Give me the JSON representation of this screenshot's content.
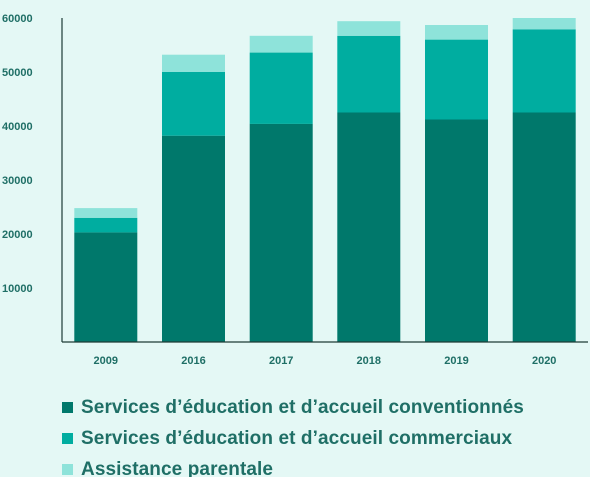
{
  "chart_data": {
    "type": "bar",
    "stacked": true,
    "categories": [
      "2009",
      "2016",
      "2017",
      "2018",
      "2019",
      "2020"
    ],
    "series": [
      {
        "name": "Services d’éducation et d’accueil conventionnés",
        "color": "#00786b",
        "values": [
          20300,
          38200,
          40400,
          42500,
          41200,
          42500
        ]
      },
      {
        "name": "Services d’éducation et d’accueil commerciaux",
        "color": "#00ada0",
        "values": [
          2700,
          11800,
          13200,
          14200,
          14800,
          15400
        ]
      },
      {
        "name": "Assistance parentale",
        "color": "#8ee3da",
        "values": [
          1800,
          3200,
          3100,
          2700,
          2700,
          2100
        ]
      }
    ],
    "ylim": [
      0,
      60000
    ],
    "yticks": [
      10000,
      20000,
      30000,
      40000,
      50000,
      60000
    ],
    "grid": false,
    "legend_position": "bottom",
    "title": "",
    "xlabel": "",
    "ylabel": ""
  }
}
